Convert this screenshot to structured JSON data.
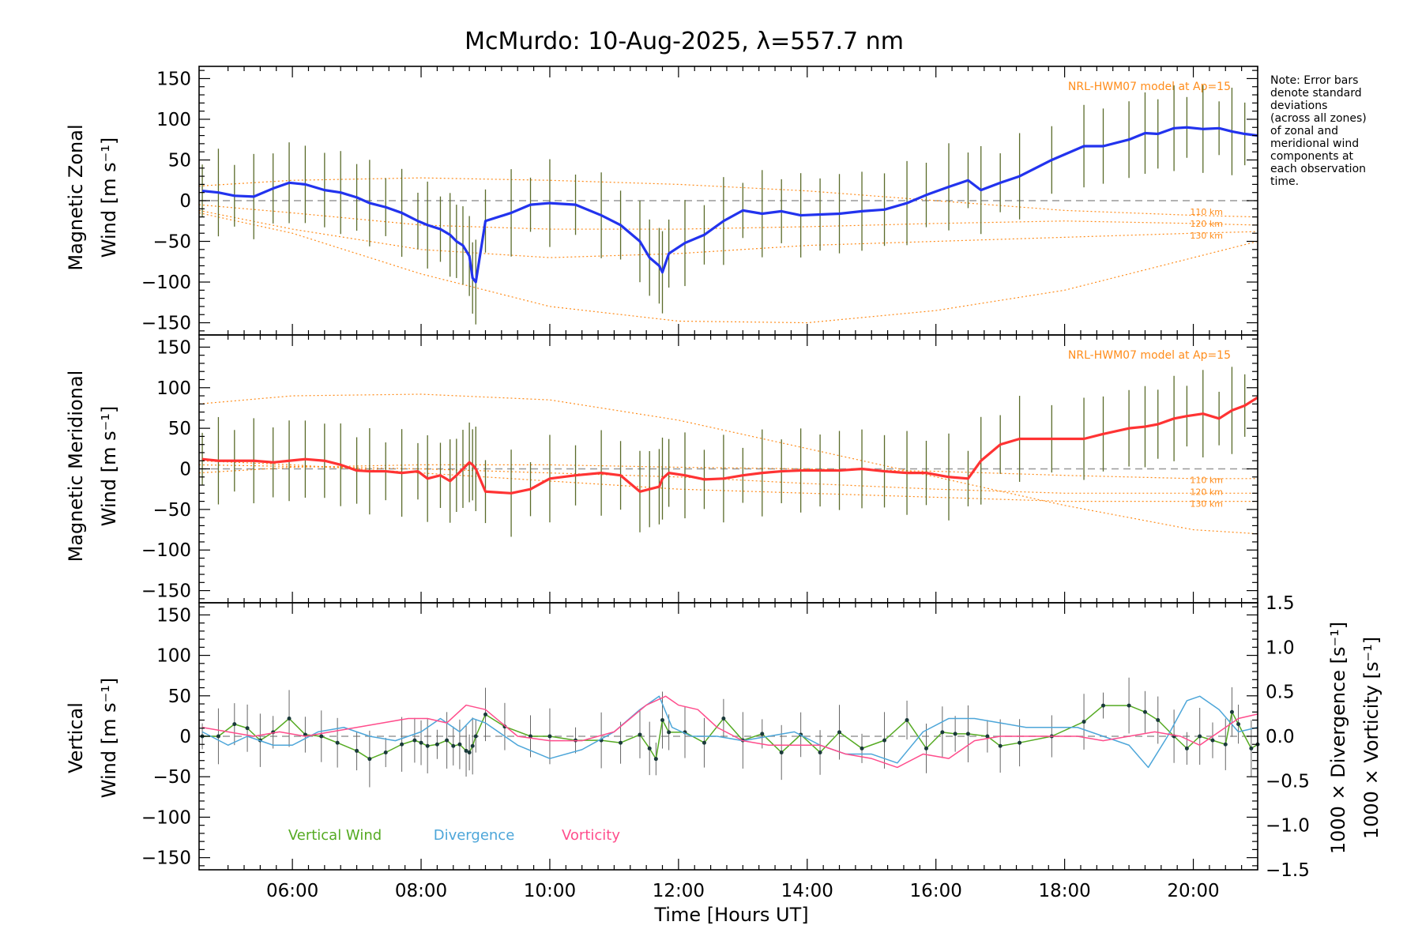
{
  "chart_data": {
    "type": "line",
    "title": "McMurdo: 10-Aug-2025, λ=557.7 nm",
    "xlabel": "Time [Hours UT]",
    "xlim": [
      4.55,
      21.0
    ],
    "x_ticks": [
      6,
      8,
      10,
      12,
      14,
      16,
      18,
      20
    ],
    "x_tick_labels": [
      "06:00",
      "08:00",
      "10:00",
      "12:00",
      "14:00",
      "16:00",
      "18:00",
      "20:00"
    ],
    "y_ticks": [
      -150,
      -100,
      -50,
      0,
      50,
      100,
      150
    ],
    "y_tick_labels": [
      "−150",
      "−100",
      "−50",
      "0",
      "50",
      "100",
      "150"
    ],
    "note": [
      "Note: Error bars",
      "denote standard",
      "deviations",
      "(across all zones)",
      "of zonal and",
      "meridional wind",
      "components at",
      "each observation",
      "time."
    ],
    "panels": [
      {
        "name": "zonal",
        "ylabel": [
          "Magnetic Zonal",
          "Wind [m s⁻¹]"
        ],
        "ylim": [
          -165,
          165
        ],
        "model_label": "NRL-HWM07 model at Ap=15",
        "altitude_labels": [
          "110 km",
          "120 km",
          "130 km"
        ],
        "series": [
          {
            "name": "Zonal wind",
            "color": "#2233ee",
            "x": [
              4.6,
              4.85,
              5.1,
              5.4,
              5.7,
              5.95,
              6.2,
              6.5,
              6.75,
              7.0,
              7.2,
              7.45,
              7.7,
              7.95,
              8.1,
              8.3,
              8.45,
              8.55,
              8.65,
              8.75,
              8.8,
              8.85,
              9.0,
              9.4,
              9.7,
              10.0,
              10.4,
              10.8,
              11.1,
              11.4,
              11.55,
              11.7,
              11.75,
              11.85,
              12.1,
              12.4,
              12.7,
              13.0,
              13.3,
              13.6,
              13.9,
              14.2,
              14.5,
              14.85,
              15.2,
              15.55,
              15.85,
              16.2,
              16.5,
              16.7,
              17.0,
              17.3,
              17.8,
              18.3,
              18.6,
              19.0,
              19.25,
              19.45,
              19.7,
              19.9,
              20.15,
              20.4,
              20.6,
              20.8,
              21.0
            ],
            "y": [
              12,
              10,
              6,
              5,
              15,
              22,
              20,
              13,
              10,
              4,
              -3,
              -8,
              -15,
              -25,
              -30,
              -35,
              -42,
              -50,
              -55,
              -68,
              -95,
              -100,
              -25,
              -15,
              -5,
              -3,
              -5,
              -18,
              -30,
              -50,
              -70,
              -80,
              -88,
              -65,
              -52,
              -42,
              -25,
              -12,
              -16,
              -13,
              -18,
              -17,
              -16,
              -13,
              -11,
              -3,
              7,
              17,
              25,
              13,
              22,
              30,
              50,
              67,
              67,
              75,
              83,
              82,
              89,
              90,
              88,
              89,
              85,
              82,
              80
            ]
          }
        ],
        "model_curves": {
          "x": [
            4.55,
            6,
            8,
            10,
            12,
            14,
            16,
            18,
            20,
            21
          ],
          "curves": [
            {
              "name": "110 km",
              "y": [
                18,
                25,
                28,
                25,
                20,
                12,
                0,
                -12,
                -18,
                -20
              ]
            },
            {
              "name": "120 km",
              "y": [
                -5,
                -15,
                -30,
                -35,
                -35,
                -32,
                -28,
                -25,
                -28,
                -30
              ]
            },
            {
              "name": "130 km",
              "y": [
                -12,
                -35,
                -60,
                -70,
                -65,
                -55,
                -50,
                -45,
                -40,
                -38
              ]
            },
            {
              "name": "outer",
              "y": [
                -15,
                -40,
                -90,
                -130,
                -148,
                -150,
                -135,
                -110,
                -70,
                -50
              ]
            }
          ]
        }
      },
      {
        "name": "meridional",
        "ylabel": [
          "Magnetic Meridional",
          "Wind [m s⁻¹]"
        ],
        "ylim": [
          -165,
          165
        ],
        "model_label": "NRL-HWM07 model at Ap=15",
        "altitude_labels": [
          "110 km",
          "120 km",
          "130 km"
        ],
        "series": [
          {
            "name": "Meridional wind",
            "color": "#ff3333",
            "x": [
              4.6,
              4.85,
              5.1,
              5.4,
              5.7,
              5.95,
              6.2,
              6.5,
              6.75,
              7.0,
              7.2,
              7.45,
              7.7,
              7.95,
              8.1,
              8.3,
              8.45,
              8.55,
              8.65,
              8.75,
              8.8,
              8.85,
              9.0,
              9.4,
              9.7,
              10.0,
              10.4,
              10.8,
              11.1,
              11.4,
              11.55,
              11.7,
              11.75,
              11.85,
              12.1,
              12.4,
              12.7,
              13.0,
              13.3,
              13.6,
              13.9,
              14.2,
              14.5,
              14.85,
              15.2,
              15.55,
              15.85,
              16.2,
              16.5,
              16.7,
              17.0,
              17.3,
              17.8,
              18.3,
              18.6,
              19.0,
              19.25,
              19.45,
              19.7,
              19.9,
              20.15,
              20.4,
              20.6,
              20.8,
              21.0
            ],
            "y": [
              12,
              10,
              10,
              10,
              8,
              10,
              12,
              10,
              5,
              -2,
              -3,
              -3,
              -5,
              -3,
              -12,
              -8,
              -15,
              -8,
              0,
              8,
              5,
              0,
              -28,
              -30,
              -25,
              -12,
              -8,
              -5,
              -8,
              -28,
              -25,
              -22,
              -12,
              -5,
              -8,
              -13,
              -12,
              -8,
              -5,
              -3,
              -2,
              -2,
              -2,
              0,
              -3,
              -5,
              -5,
              -10,
              -12,
              10,
              30,
              37,
              37,
              37,
              43,
              50,
              52,
              55,
              62,
              65,
              68,
              62,
              72,
              78,
              88
            ]
          }
        ],
        "model_curves": {
          "x": [
            4.55,
            6,
            8,
            10,
            12,
            14,
            16,
            18,
            20,
            21
          ],
          "curves": [
            {
              "name": "top",
              "y": [
                80,
                90,
                92,
                85,
                60,
                25,
                -10,
                -45,
                -75,
                -80
              ]
            },
            {
              "name": "110 km",
              "y": [
                -5,
                2,
                5,
                5,
                2,
                0,
                -3,
                -8,
                -12,
                -12
              ]
            },
            {
              "name": "120 km",
              "y": [
                5,
                3,
                0,
                -5,
                -10,
                -18,
                -25,
                -30,
                -30,
                -30
              ]
            },
            {
              "name": "130 km",
              "y": [
                10,
                5,
                -5,
                -15,
                -25,
                -30,
                -35,
                -40,
                -40,
                -40
              ]
            }
          ]
        }
      },
      {
        "name": "vertical",
        "ylabel": [
          "Vertical",
          "Wind [m s⁻¹]"
        ],
        "ylim": [
          -165,
          165
        ],
        "y2lim": [
          -1.5,
          1.5
        ],
        "y2_ticks": [
          -1.5,
          -1.0,
          -0.5,
          0.0,
          0.5,
          1.0,
          1.5
        ],
        "y2_tick_labels": [
          "−1.5",
          "−1.0",
          "−0.5",
          "0.0",
          "0.5",
          "1.0",
          "1.5"
        ],
        "y2_label_divergence": "1000 × Divergence [s⁻¹]",
        "y2_label_vorticity": "1000 × Vorticity [s⁻¹]",
        "legend": [
          "Vertical Wind",
          "Divergence",
          "Vorticity"
        ],
        "series": [
          {
            "name": "Vertical Wind",
            "color": "#55aa22",
            "axis": "left",
            "x": [
              4.6,
              4.85,
              5.1,
              5.3,
              5.5,
              5.7,
              5.95,
              6.2,
              6.45,
              6.7,
              7.0,
              7.2,
              7.45,
              7.7,
              7.9,
              8.0,
              8.1,
              8.25,
              8.4,
              8.5,
              8.6,
              8.7,
              8.75,
              8.8,
              8.85,
              9.0,
              9.3,
              9.7,
              10.0,
              10.4,
              10.8,
              11.1,
              11.4,
              11.55,
              11.65,
              11.75,
              11.85,
              12.1,
              12.4,
              12.7,
              13.0,
              13.3,
              13.6,
              13.9,
              14.2,
              14.5,
              14.85,
              15.2,
              15.55,
              15.85,
              16.1,
              16.3,
              16.5,
              16.8,
              17.0,
              17.3,
              17.8,
              18.3,
              18.6,
              19.0,
              19.25,
              19.45,
              19.7,
              19.9,
              20.1,
              20.3,
              20.5,
              20.6,
              20.7,
              20.9,
              21.0
            ],
            "y": [
              0,
              0,
              15,
              10,
              -5,
              5,
              22,
              2,
              0,
              -8,
              -18,
              -28,
              -20,
              -10,
              -5,
              -8,
              -12,
              -10,
              -5,
              -12,
              -10,
              -18,
              -20,
              -12,
              0,
              27,
              12,
              0,
              0,
              -5,
              -5,
              -8,
              2,
              -15,
              -28,
              20,
              5,
              5,
              -8,
              22,
              -5,
              3,
              -20,
              2,
              -20,
              5,
              -15,
              -5,
              20,
              -15,
              5,
              3,
              3,
              0,
              -12,
              -8,
              0,
              18,
              38,
              38,
              30,
              20,
              0,
              -15,
              0,
              -5,
              -10,
              30,
              15,
              -15,
              -10
            ]
          },
          {
            "name": "Divergence",
            "color": "#4da6d9",
            "axis": "right",
            "x": [
              4.6,
              5.0,
              5.3,
              5.7,
              6.0,
              6.4,
              6.8,
              7.2,
              7.6,
              8.0,
              8.3,
              8.6,
              8.8,
              9.0,
              9.5,
              10.0,
              10.5,
              11.0,
              11.4,
              11.7,
              11.9,
              12.2,
              12.6,
              13.0,
              13.4,
              13.8,
              14.2,
              14.6,
              15.0,
              15.4,
              15.8,
              16.2,
              16.6,
              17.0,
              17.4,
              17.8,
              18.2,
              18.6,
              19.0,
              19.3,
              19.6,
              19.9,
              20.1,
              20.4,
              20.7,
              21.0
            ],
            "y": [
              0.05,
              -0.1,
              0.0,
              -0.1,
              -0.1,
              0.05,
              0.1,
              0.0,
              -0.05,
              0.05,
              0.2,
              0.05,
              0.2,
              0.15,
              -0.1,
              -0.25,
              -0.15,
              0.05,
              0.3,
              0.45,
              0.1,
              0.0,
              0.0,
              -0.05,
              0.0,
              0.05,
              -0.1,
              -0.2,
              -0.2,
              -0.3,
              0.05,
              0.2,
              0.2,
              0.15,
              0.1,
              0.1,
              0.1,
              0.0,
              -0.1,
              -0.35,
              0.0,
              0.4,
              0.45,
              0.3,
              0.05,
              0.1
            ]
          },
          {
            "name": "Vorticity",
            "color": "#ff4d8c",
            "axis": "right",
            "x": [
              4.6,
              5.0,
              5.4,
              5.8,
              6.2,
              6.6,
              7.0,
              7.4,
              7.8,
              8.1,
              8.4,
              8.7,
              9.0,
              9.5,
              10.0,
              10.5,
              11.0,
              11.5,
              11.8,
              12.0,
              12.3,
              12.6,
              13.0,
              13.4,
              13.8,
              14.2,
              14.6,
              15.0,
              15.4,
              15.8,
              16.2,
              16.6,
              17.0,
              17.4,
              17.8,
              18.2,
              18.6,
              19.0,
              19.4,
              19.8,
              20.1,
              20.4,
              20.7,
              21.0
            ],
            "y": [
              0.1,
              0.05,
              0.0,
              0.05,
              0.0,
              0.05,
              0.1,
              0.15,
              0.2,
              0.2,
              0.15,
              0.35,
              0.3,
              0.0,
              -0.05,
              -0.05,
              0.05,
              0.35,
              0.45,
              0.35,
              0.3,
              0.1,
              -0.05,
              -0.1,
              -0.1,
              -0.1,
              -0.2,
              -0.25,
              -0.35,
              -0.2,
              -0.25,
              -0.05,
              0.0,
              0.0,
              0.0,
              0.0,
              -0.05,
              0.0,
              0.05,
              0.0,
              -0.1,
              0.05,
              0.2,
              0.25
            ]
          }
        ]
      }
    ]
  }
}
